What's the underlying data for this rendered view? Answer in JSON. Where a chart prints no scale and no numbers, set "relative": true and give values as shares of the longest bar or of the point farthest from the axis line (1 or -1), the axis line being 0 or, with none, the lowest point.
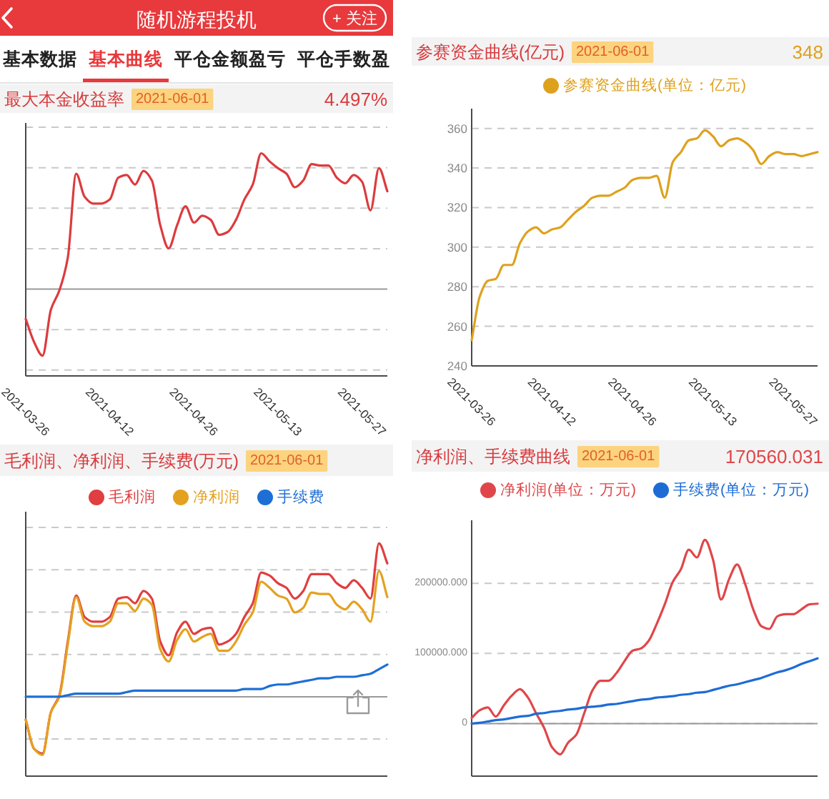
{
  "chart_data": [
    {
      "type": "other",
      "title": "随机游程投机",
      "annotations": [
        "+ 关注",
        "基本数据",
        "基本曲线",
        "平仓金额盈亏",
        "平仓手数盈"
      ]
    },
    {
      "type": "line",
      "title": "最大本金收益率",
      "subtitle": "2021-06-01",
      "annotations": [
        "4.497%"
      ],
      "relative": true,
      "grid": "y",
      "categories": [
        "2021-03-26",
        null,
        null,
        null,
        null,
        null,
        null,
        null,
        null,
        null,
        "2021-04-12",
        null,
        null,
        null,
        null,
        null,
        null,
        null,
        null,
        null,
        "2021-04-26",
        null,
        null,
        null,
        null,
        null,
        null,
        null,
        null,
        null,
        "2021-05-13",
        null,
        null,
        null,
        null,
        null,
        null,
        null,
        null,
        null,
        "2021-05-27",
        null,
        null,
        null
      ],
      "series": [
        {
          "color": "#dc3b3e",
          "values": [
            -0.22,
            -0.39,
            -0.49,
            -0.15,
            -0.01,
            0.23,
            0.85,
            0.68,
            0.63,
            0.63,
            0.66,
            0.82,
            0.84,
            0.77,
            0.87,
            0.8,
            0.47,
            0.3,
            0.47,
            0.61,
            0.49,
            0.54,
            0.51,
            0.4,
            0.42,
            0.51,
            0.66,
            0.77,
            1,
            0.94,
            0.89,
            0.85,
            0.75,
            0.8,
            0.92,
            0.91,
            0.91,
            0.82,
            0.78,
            0.84,
            0.79,
            0.58,
            0.89,
            0.72
          ]
        }
      ]
    },
    {
      "type": "line",
      "title": "参赛资金曲线(亿元)",
      "subtitle": "2021-06-01",
      "annotations": [
        "348"
      ],
      "legend": "top",
      "grid": "y",
      "ylim": [
        240,
        370
      ],
      "yticks": [
        240,
        260,
        280,
        300,
        320,
        340,
        360
      ],
      "categories": [
        "2021-03-26",
        null,
        null,
        null,
        null,
        null,
        null,
        null,
        null,
        null,
        "2021-04-12",
        null,
        null,
        null,
        null,
        null,
        null,
        null,
        null,
        null,
        "2021-04-26",
        null,
        null,
        null,
        null,
        null,
        null,
        null,
        null,
        null,
        "2021-05-13",
        null,
        null,
        null,
        null,
        null,
        null,
        null,
        null,
        null,
        "2021-05-27",
        null,
        null,
        null
      ],
      "series": [
        {
          "name": "参赛资金曲线(单位：亿元)",
          "color": "#dea11e",
          "values": [
            253,
            275,
            283,
            284,
            291,
            291,
            302,
            308,
            310,
            307,
            309,
            310,
            314,
            318,
            321,
            325,
            326,
            326,
            328,
            330,
            334,
            335,
            335,
            336,
            325,
            343,
            348,
            354,
            355,
            359,
            356,
            351,
            354,
            355,
            353,
            349,
            342,
            346,
            348,
            347,
            347,
            346,
            347,
            348
          ]
        }
      ]
    },
    {
      "type": "line",
      "title": "毛利润、净利润、手续费(万元)",
      "subtitle": "2021-06-01",
      "legend": "top",
      "relative": true,
      "grid": "y",
      "categories": [
        null,
        null,
        null,
        null,
        null,
        null,
        null,
        null,
        null,
        null,
        null,
        null,
        null,
        null,
        null,
        null,
        null,
        null,
        null,
        null,
        null,
        null,
        null,
        null,
        null,
        null,
        null,
        null,
        null,
        null,
        null,
        null,
        null,
        null,
        null,
        null,
        null,
        null,
        null,
        null,
        null,
        null,
        null,
        null
      ],
      "series": [
        {
          "name": "毛利润",
          "color": "#e03e40",
          "values": [
            -0.15,
            -0.34,
            -0.37,
            -0.1,
            0.01,
            0.36,
            0.66,
            0.52,
            0.49,
            0.49,
            0.52,
            0.64,
            0.65,
            0.61,
            0.69,
            0.64,
            0.36,
            0.27,
            0.42,
            0.49,
            0.41,
            0.44,
            0.45,
            0.34,
            0.36,
            0.41,
            0.52,
            0.61,
            0.81,
            0.79,
            0.74,
            0.71,
            0.64,
            0.69,
            0.8,
            0.8,
            0.8,
            0.74,
            0.71,
            0.76,
            0.71,
            0.64,
            1,
            0.87
          ]
        },
        {
          "name": "净利润",
          "color": "#e4a11f",
          "values": [
            -0.15,
            -0.34,
            -0.38,
            -0.1,
            0,
            0.34,
            0.65,
            0.49,
            0.46,
            0.46,
            0.49,
            0.61,
            0.61,
            0.56,
            0.64,
            0.6,
            0.31,
            0.23,
            0.37,
            0.44,
            0.36,
            0.39,
            0.41,
            0.3,
            0.3,
            0.36,
            0.47,
            0.55,
            0.75,
            0.71,
            0.66,
            0.64,
            0.55,
            0.58,
            0.68,
            0.67,
            0.67,
            0.6,
            0.57,
            0.62,
            0.57,
            0.49,
            0.82,
            0.65
          ]
        },
        {
          "name": "手续费",
          "color": "#1d6fd6",
          "values": [
            0,
            0,
            0,
            0,
            0,
            0.01,
            0.02,
            0.02,
            0.02,
            0.02,
            0.02,
            0.02,
            0.03,
            0.04,
            0.04,
            0.04,
            0.04,
            0.04,
            0.04,
            0.04,
            0.04,
            0.04,
            0.04,
            0.04,
            0.04,
            0.04,
            0.05,
            0.05,
            0.05,
            0.07,
            0.08,
            0.08,
            0.09,
            0.1,
            0.11,
            0.12,
            0.12,
            0.13,
            0.13,
            0.13,
            0.14,
            0.15,
            0.18,
            0.21
          ]
        }
      ]
    },
    {
      "type": "line",
      "title": "净利润、手续费曲线",
      "subtitle": "2021-06-01",
      "annotations": [
        "170560.031"
      ],
      "legend": "top",
      "grid": "y",
      "ylim": [
        -75000,
        290000
      ],
      "yticks": [
        0,
        {
          "value": 100000,
          "label": "100000.000"
        },
        {
          "value": 200000,
          "label": "200000.000"
        }
      ],
      "ref_lines": [
        {
          "axis": "y",
          "value": 0
        }
      ],
      "categories": [
        null,
        null,
        null,
        null,
        null,
        null,
        null,
        null,
        null,
        null,
        null,
        null,
        null,
        null,
        null,
        null,
        null,
        null,
        null,
        null,
        null,
        null,
        null,
        null,
        null,
        null,
        null,
        null,
        null,
        null,
        null,
        null,
        null,
        null,
        null,
        null,
        null,
        null,
        null,
        null,
        null,
        null,
        null,
        null
      ],
      "series": [
        {
          "name": "净利润(单位：万元)",
          "color": "#e04649",
          "values": [
            8000,
            19000,
            23000,
            10000,
            26000,
            40000,
            49000,
            37000,
            15000,
            -6000,
            -34000,
            -44000,
            -27000,
            -16000,
            15000,
            47000,
            61000,
            61000,
            72000,
            89000,
            104000,
            107000,
            118000,
            142000,
            170000,
            202000,
            220000,
            248000,
            237000,
            262000,
            234000,
            177000,
            206000,
            227000,
            199000,
            163000,
            139000,
            135000,
            153000,
            156000,
            156000,
            163000,
            170000,
            171000
          ]
        },
        {
          "name": "手续费(单位：万元)",
          "color": "#1d6cd6",
          "values": [
            0,
            1000,
            3000,
            5000,
            6000,
            8000,
            10000,
            11000,
            14000,
            15000,
            17000,
            18000,
            20000,
            21000,
            23000,
            24000,
            25000,
            27000,
            28000,
            30000,
            32000,
            34000,
            35000,
            37000,
            38000,
            39000,
            41000,
            42000,
            44000,
            45000,
            48000,
            51000,
            54000,
            56000,
            59000,
            62000,
            65000,
            69000,
            73000,
            76000,
            80000,
            85000,
            89000,
            93000
          ]
        }
      ]
    }
  ]
}
